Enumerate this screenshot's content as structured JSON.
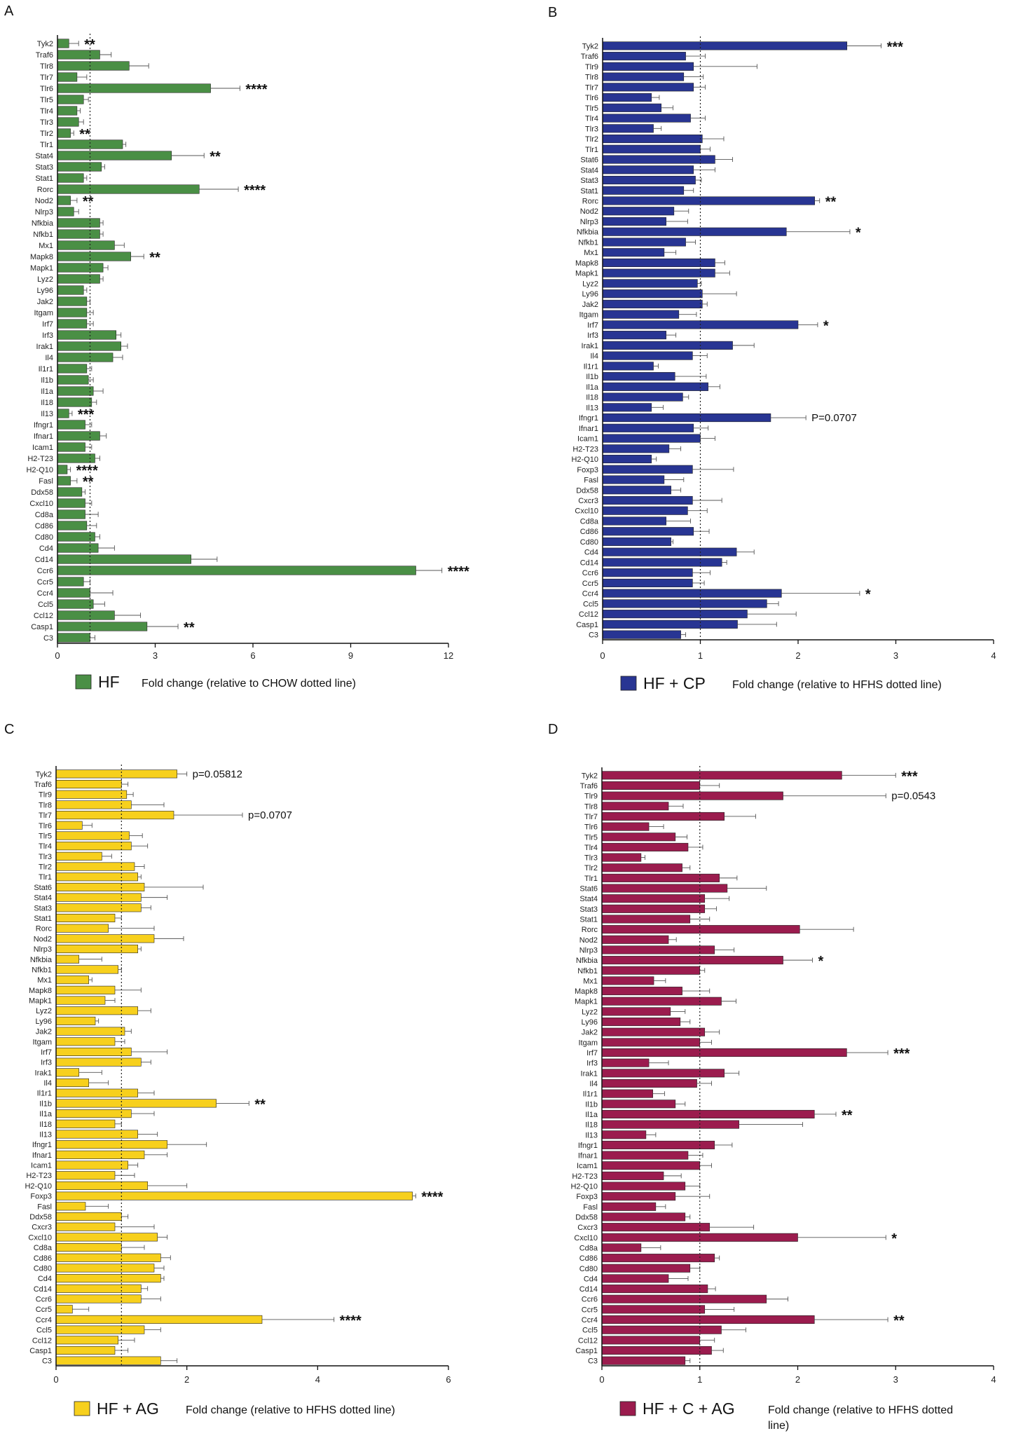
{
  "figure": {
    "note": "Four horizontal bar charts of gene expression fold change"
  },
  "chart_data": [
    {
      "panel": "A",
      "type": "bar",
      "orientation": "horizontal",
      "legend_label": "HF",
      "xlabel": "Fold change (relative to CHOW dotted line)",
      "color": "#4a8f45",
      "xlim": [
        0,
        12
      ],
      "xticks": [
        0,
        3,
        6,
        9,
        12
      ],
      "reference_line": 1,
      "categories": [
        "Tyk2",
        "Traf6",
        "Tlr8",
        "Tlr7",
        "Tlr6",
        "Tlr5",
        "Tlr4",
        "Tlr3",
        "Tlr2",
        "Tlr1",
        "Stat4",
        "Stat3",
        "Stat1",
        "Rorc",
        "Nod2",
        "Nlrp3",
        "Nfkbia",
        "Nfkb1",
        "Mx1",
        "Mapk8",
        "Mapk1",
        "Lyz2",
        "Ly96",
        "Jak2",
        "Itgam",
        "Irf7",
        "Irf3",
        "Irak1",
        "Il4",
        "Il1r1",
        "Il1b",
        "Il1a",
        "Il18",
        "Il13",
        "Ifngr1",
        "Ifnar1",
        "Icam1",
        "H2-T23",
        "H2-Q10",
        "Fasl",
        "Ddx58",
        "Cxcl10",
        "Cd8a",
        "Cd86",
        "Cd80",
        "Cd4",
        "Cd14",
        "Ccr6",
        "Ccr5",
        "Ccr4",
        "Ccl5",
        "Ccl12",
        "Casp1",
        "C3"
      ],
      "values": [
        0.35,
        1.3,
        2.2,
        0.6,
        4.7,
        0.8,
        0.6,
        0.65,
        0.4,
        2.0,
        3.5,
        1.35,
        0.8,
        4.35,
        0.4,
        0.5,
        1.3,
        1.3,
        1.75,
        2.25,
        1.4,
        1.3,
        0.8,
        0.9,
        0.9,
        0.9,
        1.8,
        1.95,
        1.7,
        0.9,
        0.95,
        1.1,
        1.05,
        0.35,
        0.85,
        1.3,
        0.85,
        1.15,
        0.3,
        0.4,
        0.75,
        0.85,
        0.85,
        0.9,
        1.15,
        1.25,
        4.1,
        11.0,
        0.8,
        1.0,
        1.1,
        1.75,
        2.75,
        1.0
      ],
      "errors": [
        0.3,
        0.35,
        0.6,
        0.3,
        0.9,
        0.15,
        0.1,
        0.15,
        0.1,
        0.1,
        1.0,
        0.1,
        0.1,
        1.2,
        0.2,
        0.15,
        0.1,
        0.1,
        0.3,
        0.4,
        0.15,
        0.1,
        0.1,
        0.1,
        0.2,
        0.2,
        0.15,
        0.2,
        0.3,
        0.15,
        0.15,
        0.3,
        0.15,
        0.1,
        0.2,
        0.2,
        0.2,
        0.15,
        0.1,
        0.2,
        0.1,
        0.2,
        0.4,
        0.3,
        0.15,
        0.5,
        0.8,
        0.8,
        0.2,
        0.7,
        0.35,
        0.8,
        0.95,
        0.15
      ],
      "annotations": [
        {
          "label": "Tyk2",
          "text": "**"
        },
        {
          "label": "Tlr6",
          "text": "****"
        },
        {
          "label": "Tlr2",
          "text": "**"
        },
        {
          "label": "Stat4",
          "text": "**"
        },
        {
          "label": "Rorc",
          "text": "****"
        },
        {
          "label": "Nod2",
          "text": "**"
        },
        {
          "label": "Mapk8",
          "text": "**"
        },
        {
          "label": "Il13",
          "text": "***"
        },
        {
          "label": "H2-Q10",
          "text": "****"
        },
        {
          "label": "Fasl",
          "text": "**"
        },
        {
          "label": "Ccr6",
          "text": "****"
        },
        {
          "label": "Casp1",
          "text": "**"
        }
      ]
    },
    {
      "panel": "B",
      "type": "bar",
      "orientation": "horizontal",
      "legend_label": "HF + CP",
      "xlabel": "Fold change (relative to HFHS dotted line)",
      "color": "#283593",
      "xlim": [
        0,
        4
      ],
      "xticks": [
        0,
        1,
        2,
        3,
        4
      ],
      "reference_line": 1,
      "categories": [
        "Tyk2",
        "Traf6",
        "Tlr9",
        "Tlr8",
        "Tlr7",
        "Tlr6",
        "Tlr5",
        "Tlr4",
        "Tlr3",
        "Tlr2",
        "Tlr1",
        "Stat6",
        "Stat4",
        "Stat3",
        "Stat1",
        "Rorc",
        "Nod2",
        "Nlrp3",
        "Nfkbia",
        "Nfkb1",
        "Mx1",
        "Mapk8",
        "Mapk1",
        "Lyz2",
        "Ly96",
        "Jak2",
        "Itgam",
        "Irf7",
        "Irf3",
        "Irak1",
        "Il4",
        "Il1r1",
        "Il1b",
        "Il1a",
        "Il18",
        "Il13",
        "Ifngr1",
        "Ifnar1",
        "Icam1",
        "H2-T23",
        "H2-Q10",
        "Foxp3",
        "Fasl",
        "Ddx58",
        "Cxcr3",
        "Cxcl10",
        "Cd8a",
        "Cd86",
        "Cd80",
        "Cd4",
        "Cd14",
        "Ccr6",
        "Ccr5",
        "Ccr4",
        "Ccl5",
        "Ccl12",
        "Casp1",
        "C3"
      ],
      "values": [
        2.5,
        0.85,
        0.93,
        0.83,
        0.93,
        0.5,
        0.6,
        0.9,
        0.52,
        1.02,
        1.0,
        1.15,
        0.93,
        0.95,
        0.83,
        2.17,
        0.73,
        0.65,
        1.88,
        0.85,
        0.63,
        1.15,
        1.15,
        0.97,
        1.02,
        1.02,
        0.78,
        2.0,
        0.65,
        1.33,
        0.92,
        0.52,
        0.74,
        1.08,
        0.82,
        0.5,
        1.72,
        0.93,
        1.0,
        0.68,
        0.5,
        0.92,
        0.63,
        0.7,
        0.92,
        0.87,
        0.65,
        0.93,
        0.7,
        1.37,
        1.22,
        0.92,
        0.92,
        1.83,
        1.68,
        1.48,
        1.38,
        0.8
      ],
      "errors": [
        0.35,
        0.2,
        0.65,
        0.2,
        0.12,
        0.08,
        0.12,
        0.15,
        0.08,
        0.22,
        0.1,
        0.18,
        0.22,
        0.06,
        0.1,
        0.05,
        0.15,
        0.22,
        0.65,
        0.1,
        0.12,
        0.1,
        0.15,
        0.04,
        0.35,
        0.05,
        0.18,
        0.2,
        0.1,
        0.22,
        0.15,
        0.05,
        0.32,
        0.12,
        0.06,
        0.12,
        0.36,
        0.15,
        0.15,
        0.12,
        0.05,
        0.42,
        0.2,
        0.1,
        0.3,
        0.2,
        0.25,
        0.16,
        0.02,
        0.18,
        0.05,
        0.18,
        0.12,
        0.8,
        0.12,
        0.5,
        0.4,
        0.05
      ],
      "annotations": [
        {
          "label": "Tyk2",
          "text": "***"
        },
        {
          "label": "Rorc",
          "text": "**"
        },
        {
          "label": "Nfkbia",
          "text": "*"
        },
        {
          "label": "Irf7",
          "text": "*"
        },
        {
          "label": "Ifngr1",
          "text": "P=0.0707"
        },
        {
          "label": "Ccr4",
          "text": "*"
        }
      ]
    },
    {
      "panel": "C",
      "type": "bar",
      "orientation": "horizontal",
      "legend_label": "HF + AG",
      "xlabel": "Fold change (relative to HFHS dotted line)",
      "color": "#f7d01d",
      "xlim": [
        0,
        6
      ],
      "xticks": [
        0,
        2,
        4,
        6
      ],
      "reference_line": 1,
      "categories": [
        "Tyk2",
        "Traf6",
        "Tlr9",
        "Tlr8",
        "Tlr7",
        "Tlr6",
        "Tlr5",
        "Tlr4",
        "Tlr3",
        "Tlr2",
        "Tlr1",
        "Stat6",
        "Stat4",
        "Stat3",
        "Stat1",
        "Rorc",
        "Nod2",
        "Nlrp3",
        "Nfkbia",
        "Nfkb1",
        "Mx1",
        "Mapk8",
        "Mapk1",
        "Lyz2",
        "Ly96",
        "Jak2",
        "Itgam",
        "Irf7",
        "Irf3",
        "Irak1",
        "Il4",
        "Il1r1",
        "Il1b",
        "Il1a",
        "Il18",
        "Il13",
        "Ifngr1",
        "Ifnar1",
        "Icam1",
        "H2-T23",
        "H2-Q10",
        "Foxp3",
        "Fasl",
        "Ddx58",
        "Cxcr3",
        "Cxcl10",
        "Cd8a",
        "Cd86",
        "Cd80",
        "Cd4",
        "Cd14",
        "Ccr6",
        "Ccr5",
        "Ccr4",
        "Ccl5",
        "Ccl12",
        "Casp1",
        "C3"
      ],
      "values": [
        1.85,
        1.0,
        1.08,
        1.15,
        1.8,
        0.4,
        1.12,
        1.15,
        0.7,
        1.2,
        1.25,
        1.35,
        1.3,
        1.3,
        0.9,
        0.8,
        1.5,
        1.25,
        0.35,
        0.95,
        0.5,
        0.9,
        0.75,
        1.25,
        0.6,
        1.05,
        0.9,
        1.15,
        1.3,
        0.35,
        0.5,
        1.25,
        2.45,
        1.15,
        0.9,
        1.25,
        1.7,
        1.35,
        1.1,
        0.9,
        1.4,
        5.45,
        0.45,
        1.0,
        0.9,
        1.55,
        1.0,
        1.6,
        1.5,
        1.6,
        1.3,
        1.3,
        0.25,
        3.15,
        1.35,
        0.95,
        0.9,
        1.6
      ],
      "errors": [
        0.15,
        0.1,
        0.1,
        0.5,
        1.05,
        0.15,
        0.2,
        0.25,
        0.15,
        0.15,
        0.05,
        0.9,
        0.4,
        0.15,
        0.1,
        0.7,
        0.45,
        0.05,
        0.35,
        0.05,
        0.05,
        0.4,
        0.15,
        0.2,
        0.05,
        0.1,
        0.15,
        0.55,
        0.15,
        0.35,
        0.3,
        0.25,
        0.5,
        0.35,
        0.1,
        0.3,
        0.6,
        0.35,
        0.15,
        0.3,
        0.6,
        0.05,
        0.35,
        0.1,
        0.6,
        0.15,
        0.35,
        0.15,
        0.15,
        0.05,
        0.1,
        0.3,
        0.25,
        1.1,
        0.25,
        0.25,
        0.2,
        0.25
      ],
      "annotations": [
        {
          "label": "Tyk2",
          "text": "p=0.05812"
        },
        {
          "label": "Tlr7",
          "text": "p=0.0707"
        },
        {
          "label": "Il1b",
          "text": "**"
        },
        {
          "label": "Foxp3",
          "text": "****"
        },
        {
          "label": "Ccr4",
          "text": "****"
        }
      ]
    },
    {
      "panel": "D",
      "type": "bar",
      "orientation": "horizontal",
      "legend_label": "HF + C + AG",
      "xlabel": "Fold change (relative to HFHS dotted line)",
      "color": "#9b1c4e",
      "xlim": [
        0,
        4
      ],
      "xticks": [
        0,
        1,
        2,
        3,
        4
      ],
      "reference_line": 1,
      "categories": [
        "Tyk2",
        "Traf6",
        "Tlr9",
        "Tlr8",
        "Tlr7",
        "Tlr6",
        "Tlr5",
        "Tlr4",
        "Tlr3",
        "Tlr2",
        "Tlr1",
        "Stat6",
        "Stat4",
        "Stat3",
        "Stat1",
        "Rorc",
        "Nod2",
        "Nlrp3",
        "Nfkbia",
        "Nfkb1",
        "Mx1",
        "Mapk8",
        "Mapk1",
        "Lyz2",
        "Ly96",
        "Jak2",
        "Itgam",
        "Irf7",
        "Irf3",
        "Irak1",
        "Il4",
        "Il1r1",
        "Il1b",
        "Il1a",
        "Il18",
        "Il13",
        "Ifngr1",
        "Ifnar1",
        "Icam1",
        "H2-T23",
        "H2-Q10",
        "Foxp3",
        "Fasl",
        "Ddx58",
        "Cxcr3",
        "Cxcl10",
        "Cd8a",
        "Cd86",
        "Cd80",
        "Cd4",
        "Cd14",
        "Ccr6",
        "Ccr5",
        "Ccr4",
        "Ccl5",
        "Ccl12",
        "Casp1",
        "C3"
      ],
      "values": [
        2.45,
        1.0,
        1.85,
        0.68,
        1.25,
        0.48,
        0.75,
        0.88,
        0.4,
        0.82,
        1.2,
        1.28,
        1.05,
        1.05,
        0.9,
        2.02,
        0.68,
        1.15,
        1.85,
        1.0,
        0.53,
        0.82,
        1.22,
        0.7,
        0.8,
        1.05,
        1.0,
        2.5,
        0.48,
        1.25,
        0.97,
        0.52,
        0.75,
        2.17,
        1.4,
        0.45,
        1.15,
        0.88,
        1.0,
        0.63,
        0.85,
        0.75,
        0.55,
        0.85,
        1.1,
        2.0,
        0.4,
        1.15,
        0.9,
        0.68,
        1.08,
        1.68,
        1.05,
        2.17,
        1.22,
        1.0,
        1.12,
        0.85
      ],
      "errors": [
        0.55,
        0.2,
        1.05,
        0.15,
        0.32,
        0.15,
        0.12,
        0.15,
        0.04,
        0.08,
        0.18,
        0.4,
        0.25,
        0.12,
        0.2,
        0.55,
        0.08,
        0.2,
        0.3,
        0.05,
        0.12,
        0.28,
        0.15,
        0.15,
        0.1,
        0.15,
        0.12,
        0.42,
        0.2,
        0.15,
        0.15,
        0.12,
        0.1,
        0.22,
        0.65,
        0.1,
        0.18,
        0.15,
        0.12,
        0.18,
        0.15,
        0.35,
        0.1,
        0.05,
        0.45,
        0.9,
        0.2,
        0.05,
        0.1,
        0.2,
        0.08,
        0.22,
        0.3,
        0.75,
        0.25,
        0.15,
        0.12,
        0.05
      ],
      "annotations": [
        {
          "label": "Tyk2",
          "text": "***"
        },
        {
          "label": "Tlr9",
          "text": "p=0.0543"
        },
        {
          "label": "Nfkbia",
          "text": "*"
        },
        {
          "label": "Irf7",
          "text": "***"
        },
        {
          "label": "Il1a",
          "text": "**"
        },
        {
          "label": "Cxcl10",
          "text": "*"
        },
        {
          "label": "Ccr4",
          "text": "**"
        }
      ]
    }
  ]
}
